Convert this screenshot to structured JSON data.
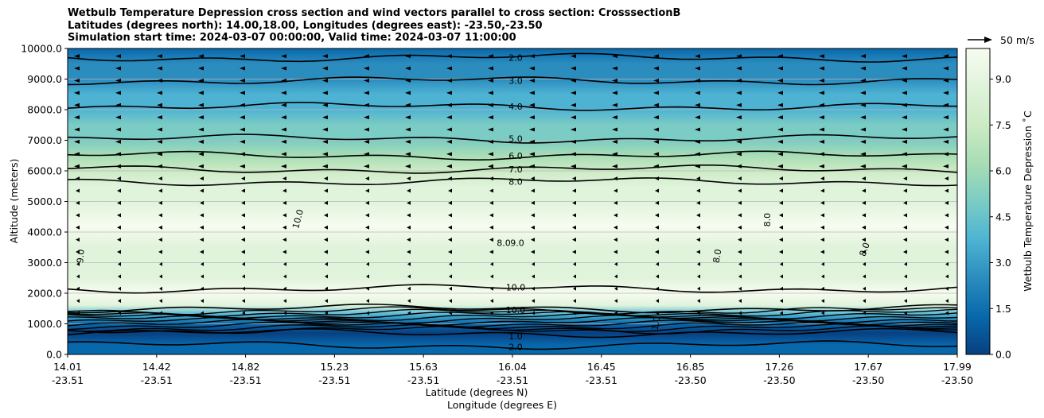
{
  "chart_data": {
    "type": "contour",
    "title_lines": [
      "Wetbulb Temperature Depression cross section and wind vectors parallel to cross section: CrosssectionB",
      "Latitudes (degrees north): 14.00,18.00, Longitudes (degrees east): -23.50,-23.50",
      "Simulation start time: 2024-03-07 00:00:00, Valid time: 2024-03-07 11:00:00"
    ],
    "ylabel": "Altitude (meters)",
    "xlabel_lat": "Latitude (degrees N)",
    "xlabel_lon": "Longitude (degrees E)",
    "ylim": [
      0,
      10000
    ],
    "yticks": [
      "0.0",
      "1000.0",
      "2000.0",
      "3000.0",
      "4000.0",
      "5000.0",
      "6000.0",
      "7000.0",
      "8000.0",
      "9000.0",
      "10000.0"
    ],
    "xticks": [
      {
        "lat": "14.01",
        "lon": "-23.51"
      },
      {
        "lat": "14.42",
        "lon": "-23.51"
      },
      {
        "lat": "14.82",
        "lon": "-23.51"
      },
      {
        "lat": "15.23",
        "lon": "-23.51"
      },
      {
        "lat": "15.63",
        "lon": "-23.51"
      },
      {
        "lat": "16.04",
        "lon": "-23.51"
      },
      {
        "lat": "16.45",
        "lon": "-23.51"
      },
      {
        "lat": "16.85",
        "lon": "-23.50"
      },
      {
        "lat": "17.26",
        "lon": "-23.50"
      },
      {
        "lat": "17.67",
        "lon": "-23.50"
      },
      {
        "lat": "17.99",
        "lon": "-23.50"
      }
    ],
    "colorbar": {
      "label": "Wetbulb Temperature Depression ˚C",
      "ticks": [
        "0.0",
        "1.5",
        "3.0",
        "4.5",
        "6.0",
        "7.5",
        "9.0"
      ],
      "range": [
        0,
        10
      ],
      "colors": [
        "#084081",
        "#0868ac",
        "#2b8cbe",
        "#4eb3d3",
        "#7bccc4",
        "#a8ddb5",
        "#ccebc5",
        "#e0f3db",
        "#f7fcf0"
      ]
    },
    "quiver_key": "50 m/s",
    "profile": [
      {
        "alt": 0,
        "val": 1.5
      },
      {
        "alt": 300,
        "val": 0.8
      },
      {
        "alt": 700,
        "val": 0.4
      },
      {
        "alt": 1000,
        "val": 1.0
      },
      {
        "alt": 1300,
        "val": 4.0
      },
      {
        "alt": 1600,
        "val": 9.0
      },
      {
        "alt": 2000,
        "val": 9.7
      },
      {
        "alt": 2500,
        "val": 9.3
      },
      {
        "alt": 3000,
        "val": 8.7
      },
      {
        "alt": 3500,
        "val": 9.0
      },
      {
        "alt": 4200,
        "val": 9.8
      },
      {
        "alt": 5000,
        "val": 9.0
      },
      {
        "alt": 5500,
        "val": 8.2
      },
      {
        "alt": 6000,
        "val": 7.2
      },
      {
        "alt": 6500,
        "val": 6.0
      },
      {
        "alt": 7000,
        "val": 5.2
      },
      {
        "alt": 7500,
        "val": 4.5
      },
      {
        "alt": 8000,
        "val": 4.0
      },
      {
        "alt": 8500,
        "val": 3.3
      },
      {
        "alt": 9000,
        "val": 2.8
      },
      {
        "alt": 9500,
        "val": 2.0
      },
      {
        "alt": 10000,
        "val": 1.0
      }
    ],
    "contours": [
      {
        "level": "2.0",
        "alt": 9700,
        "lab_alt": 9700
      },
      {
        "level": "3.0",
        "alt": 8950,
        "lab_alt": 8950
      },
      {
        "level": "4.0",
        "alt": 8100,
        "lab_alt": 8100
      },
      {
        "level": "5.0",
        "alt": 7050,
        "lab_alt": 7050
      },
      {
        "level": "6.0",
        "alt": 6500,
        "lab_alt": 6500
      },
      {
        "level": "7.0",
        "alt": 6050,
        "lab_alt": 6050
      },
      {
        "level": "8.0",
        "alt": 5650,
        "lab_alt": 5650
      },
      {
        "level": "10.0",
        "alt": 2150,
        "lab_alt": 2200
      },
      {
        "level": "10.0",
        "alt": 1500,
        "lab_alt": 1450
      },
      {
        "level": "1.0",
        "alt": 700,
        "lab_alt": 600
      },
      {
        "level": "2.0",
        "alt": 300,
        "lab_alt": 250
      }
    ],
    "extra_labels": [
      "10.0",
      "9.0",
      "8.0",
      "8.0",
      "8.0",
      "8.0",
      "9.0",
      "1.0"
    ]
  }
}
